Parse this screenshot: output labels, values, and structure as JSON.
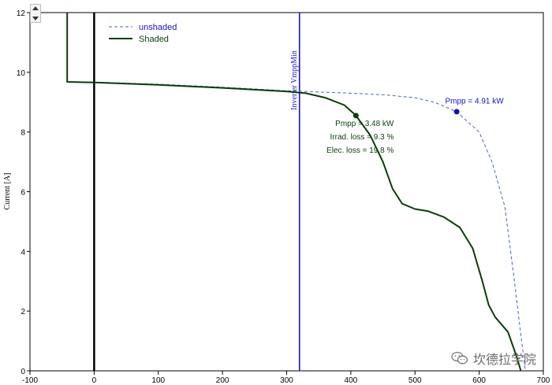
{
  "chart_data": {
    "type": "line",
    "ylabel": "Current [A]",
    "xlabel": "",
    "xlim": [
      -100,
      700
    ],
    "ylim": [
      0,
      12
    ],
    "x_ticks": [
      -100,
      0,
      100,
      200,
      300,
      400,
      500,
      600,
      700
    ],
    "y_ticks": [
      0,
      2,
      4,
      6,
      8,
      10,
      12
    ],
    "grid": false,
    "legend_position": "top-left",
    "series": [
      {
        "name": "unshaded",
        "style": "dashed",
        "color": "#4a62c8",
        "points": [
          [
            -42,
            9.68
          ],
          [
            0,
            9.67
          ],
          [
            100,
            9.6
          ],
          [
            200,
            9.5
          ],
          [
            300,
            9.38
          ],
          [
            400,
            9.3
          ],
          [
            450,
            9.25
          ],
          [
            500,
            9.15
          ],
          [
            530,
            9.0
          ],
          [
            565,
            8.68
          ],
          [
            600,
            8.0
          ],
          [
            620,
            7.0
          ],
          [
            640,
            5.5
          ],
          [
            655,
            3.0
          ],
          [
            665,
            1.2
          ],
          [
            672,
            0
          ]
        ]
      },
      {
        "name": "Shaded",
        "style": "solid",
        "color": "#0a3d0a",
        "points": [
          [
            -42,
            12.0
          ],
          [
            -42,
            9.68
          ],
          [
            0,
            9.66
          ],
          [
            100,
            9.58
          ],
          [
            200,
            9.48
          ],
          [
            300,
            9.36
          ],
          [
            330,
            9.3
          ],
          [
            360,
            9.15
          ],
          [
            390,
            8.9
          ],
          [
            408,
            8.55
          ],
          [
            430,
            7.9
          ],
          [
            450,
            7.0
          ],
          [
            465,
            6.1
          ],
          [
            480,
            5.6
          ],
          [
            500,
            5.42
          ],
          [
            520,
            5.35
          ],
          [
            545,
            5.15
          ],
          [
            570,
            4.8
          ],
          [
            590,
            4.1
          ],
          [
            605,
            3.0
          ],
          [
            615,
            2.2
          ],
          [
            625,
            1.8
          ],
          [
            645,
            1.3
          ],
          [
            658,
            0.5
          ],
          [
            665,
            0
          ]
        ]
      }
    ],
    "vertical_lines": [
      {
        "x": 0,
        "color": "#000000",
        "label": ""
      },
      {
        "x": 320,
        "color": "#1515c9",
        "label": "Inverter VmppMin"
      }
    ],
    "markers": [
      {
        "x": 408,
        "y": 8.55,
        "color": "#0a3d0a"
      },
      {
        "x": 565,
        "y": 8.68,
        "color": "#1010c0"
      }
    ],
    "annotations": [
      {
        "text": "Pmpp = 4.91 kW",
        "x": 568,
        "y": 8.95,
        "color": "#1515c9",
        "anchor": "middle"
      },
      {
        "text": "Pmpp = 3.48 kW",
        "x": 408,
        "y": 8.2,
        "color": "#0a3d0a",
        "anchor": "end"
      },
      {
        "text": "Irrad. loss = 9.3 %",
        "x": 408,
        "y": 7.75,
        "color": "#0a3d0a",
        "anchor": "end"
      },
      {
        "text": "Elec. loss = 19.8 %",
        "x": 408,
        "y": 7.3,
        "color": "#0a3d0a",
        "anchor": "end"
      }
    ]
  },
  "watermark": {
    "text": "坎德拉学院",
    "icon": "wechat-icon"
  }
}
